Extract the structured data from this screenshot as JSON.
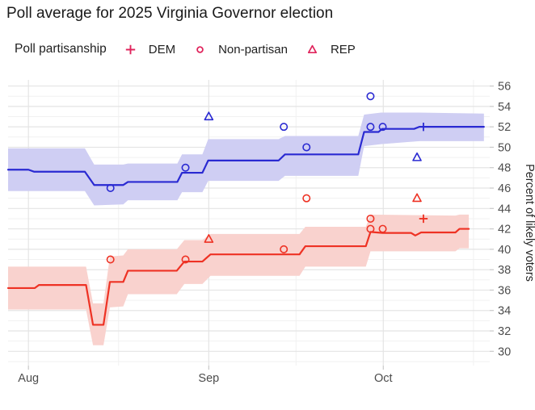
{
  "title": "Poll average for 2025 Virginia Governor election",
  "legend": {
    "title": "Poll partisanship",
    "glyph_color": "#e0245c",
    "items": [
      {
        "label": "DEM",
        "shape": "plus"
      },
      {
        "label": "Non-partisan",
        "shape": "circle"
      },
      {
        "label": "REP",
        "shape": "triangle"
      }
    ]
  },
  "colors": {
    "grid_major": "#e4e4e4",
    "grid_minor": "#f1f1f1",
    "tick": "#c9c9c9",
    "axis_text": "#4d4d4d",
    "axis_title": "#262626",
    "title_text": "#1a1a1a"
  },
  "chart_data": {
    "type": "line",
    "title": "Poll average for 2025 Virginia Governor election",
    "xlabel": "",
    "ylabel": "Percent of likely voters",
    "x_unit": "days since Aug 1, 2025",
    "xlim": [
      -3.5,
      79.3
    ],
    "ylim": [
      28.6,
      56.6
    ],
    "grid": true,
    "legend_position": "top",
    "x_ticks": [
      {
        "pos": 0,
        "label": "Aug"
      },
      {
        "pos": 31,
        "label": "Sep"
      },
      {
        "pos": 61,
        "label": "Oct"
      }
    ],
    "x_minor": [
      15.5,
      46,
      76.5
    ],
    "y_ticks": [
      56,
      54,
      52,
      50,
      48,
      46,
      44,
      42,
      40,
      38,
      36,
      34,
      32,
      30
    ],
    "y_minor": [
      29,
      31,
      33,
      35,
      37,
      39,
      41,
      43,
      45,
      47,
      49,
      51,
      53,
      55
    ],
    "series": [
      {
        "name": "dem_average",
        "color": "#2a2ad2",
        "band_color": "#cfcef3",
        "line": [
          [
            -3.5,
            47.8
          ],
          [
            0.0,
            47.8
          ],
          [
            1.0,
            47.6
          ],
          [
            9.7,
            47.6
          ],
          [
            11.3,
            46.3
          ],
          [
            16.3,
            46.3
          ],
          [
            17.1,
            46.6
          ],
          [
            25.6,
            46.6
          ],
          [
            26.4,
            47.5
          ],
          [
            29.9,
            47.5
          ],
          [
            30.9,
            48.7
          ],
          [
            43.0,
            48.7
          ],
          [
            44.1,
            49.3
          ],
          [
            56.7,
            49.3
          ],
          [
            57.7,
            51.5
          ],
          [
            60.2,
            51.5
          ],
          [
            60.8,
            51.8
          ],
          [
            66.3,
            51.8
          ],
          [
            67.2,
            52.0
          ],
          [
            78.3,
            52.0
          ]
        ],
        "band": [
          [
            -3.5,
            45.7,
            49.9
          ],
          [
            9.7,
            45.7,
            49.9
          ],
          [
            11.3,
            44.3,
            48.3
          ],
          [
            16.3,
            44.4,
            48.3
          ],
          [
            17.1,
            44.8,
            48.4
          ],
          [
            25.6,
            44.8,
            48.4
          ],
          [
            26.4,
            45.6,
            49.3
          ],
          [
            29.9,
            45.6,
            49.3
          ],
          [
            30.9,
            46.7,
            50.8
          ],
          [
            43.0,
            46.7,
            50.8
          ],
          [
            44.1,
            47.2,
            51.1
          ],
          [
            56.7,
            47.2,
            51.1
          ],
          [
            57.7,
            50.1,
            53.2
          ],
          [
            60.6,
            50.3,
            53.4
          ],
          [
            67.2,
            50.6,
            53.4
          ],
          [
            78.3,
            50.6,
            53.3
          ]
        ]
      },
      {
        "name": "rep_average",
        "color": "#ee3224",
        "band_color": "#f9d2ce",
        "line": [
          [
            -3.5,
            36.2
          ],
          [
            1.1,
            36.2
          ],
          [
            1.8,
            36.5
          ],
          [
            9.9,
            36.5
          ],
          [
            11.1,
            32.6
          ],
          [
            12.9,
            32.6
          ],
          [
            14.0,
            36.8
          ],
          [
            16.3,
            36.8
          ],
          [
            17.1,
            37.9
          ],
          [
            25.5,
            37.9
          ],
          [
            26.8,
            38.8
          ],
          [
            29.9,
            38.8
          ],
          [
            31.3,
            39.5
          ],
          [
            46.6,
            39.5
          ],
          [
            47.6,
            40.3
          ],
          [
            58.0,
            40.3
          ],
          [
            58.8,
            41.7
          ],
          [
            60.9,
            41.6
          ],
          [
            65.8,
            41.6
          ],
          [
            66.5,
            41.35
          ],
          [
            67.5,
            41.65
          ],
          [
            73.4,
            41.65
          ],
          [
            74.1,
            42.0
          ],
          [
            75.7,
            42.0
          ]
        ],
        "band": [
          [
            -3.5,
            34.1,
            38.3
          ],
          [
            9.9,
            34.1,
            38.3
          ],
          [
            11.1,
            30.6,
            34.7
          ],
          [
            12.9,
            30.6,
            34.7
          ],
          [
            14.0,
            34.3,
            39.3
          ],
          [
            16.3,
            34.4,
            39.4
          ],
          [
            17.1,
            35.6,
            40.0
          ],
          [
            25.5,
            35.6,
            40.0
          ],
          [
            26.8,
            36.6,
            40.9
          ],
          [
            29.9,
            36.6,
            40.9
          ],
          [
            31.3,
            37.4,
            41.5
          ],
          [
            46.6,
            37.4,
            41.5
          ],
          [
            47.6,
            38.3,
            42.2
          ],
          [
            58.0,
            38.3,
            42.2
          ],
          [
            58.8,
            39.8,
            43.4
          ],
          [
            73.4,
            39.8,
            43.3
          ],
          [
            74.1,
            40.1,
            43.4
          ],
          [
            75.7,
            40.1,
            43.4
          ]
        ]
      }
    ],
    "polls": [
      {
        "x": 14.1,
        "shape": "circle",
        "dem": 46,
        "rep": 39
      },
      {
        "x": 27.0,
        "shape": "circle",
        "dem": 48,
        "rep": 39
      },
      {
        "x": 31.0,
        "shape": "triangle",
        "dem": 53,
        "rep": 41
      },
      {
        "x": 43.9,
        "shape": "circle",
        "dem": 52,
        "rep": 40
      },
      {
        "x": 47.8,
        "shape": "circle",
        "dem": 50,
        "rep": 45
      },
      {
        "x": 58.8,
        "shape": "circle",
        "dem": 55,
        "rep": 43
      },
      {
        "x": 58.8,
        "shape": "circle",
        "dem": 52,
        "rep": 42
      },
      {
        "x": 60.9,
        "shape": "circle",
        "dem": 52,
        "rep": 42
      },
      {
        "x": 66.8,
        "shape": "triangle",
        "dem": 49,
        "rep": 45
      },
      {
        "x": 67.9,
        "shape": "plus",
        "dem": 52,
        "rep": 43
      }
    ]
  }
}
